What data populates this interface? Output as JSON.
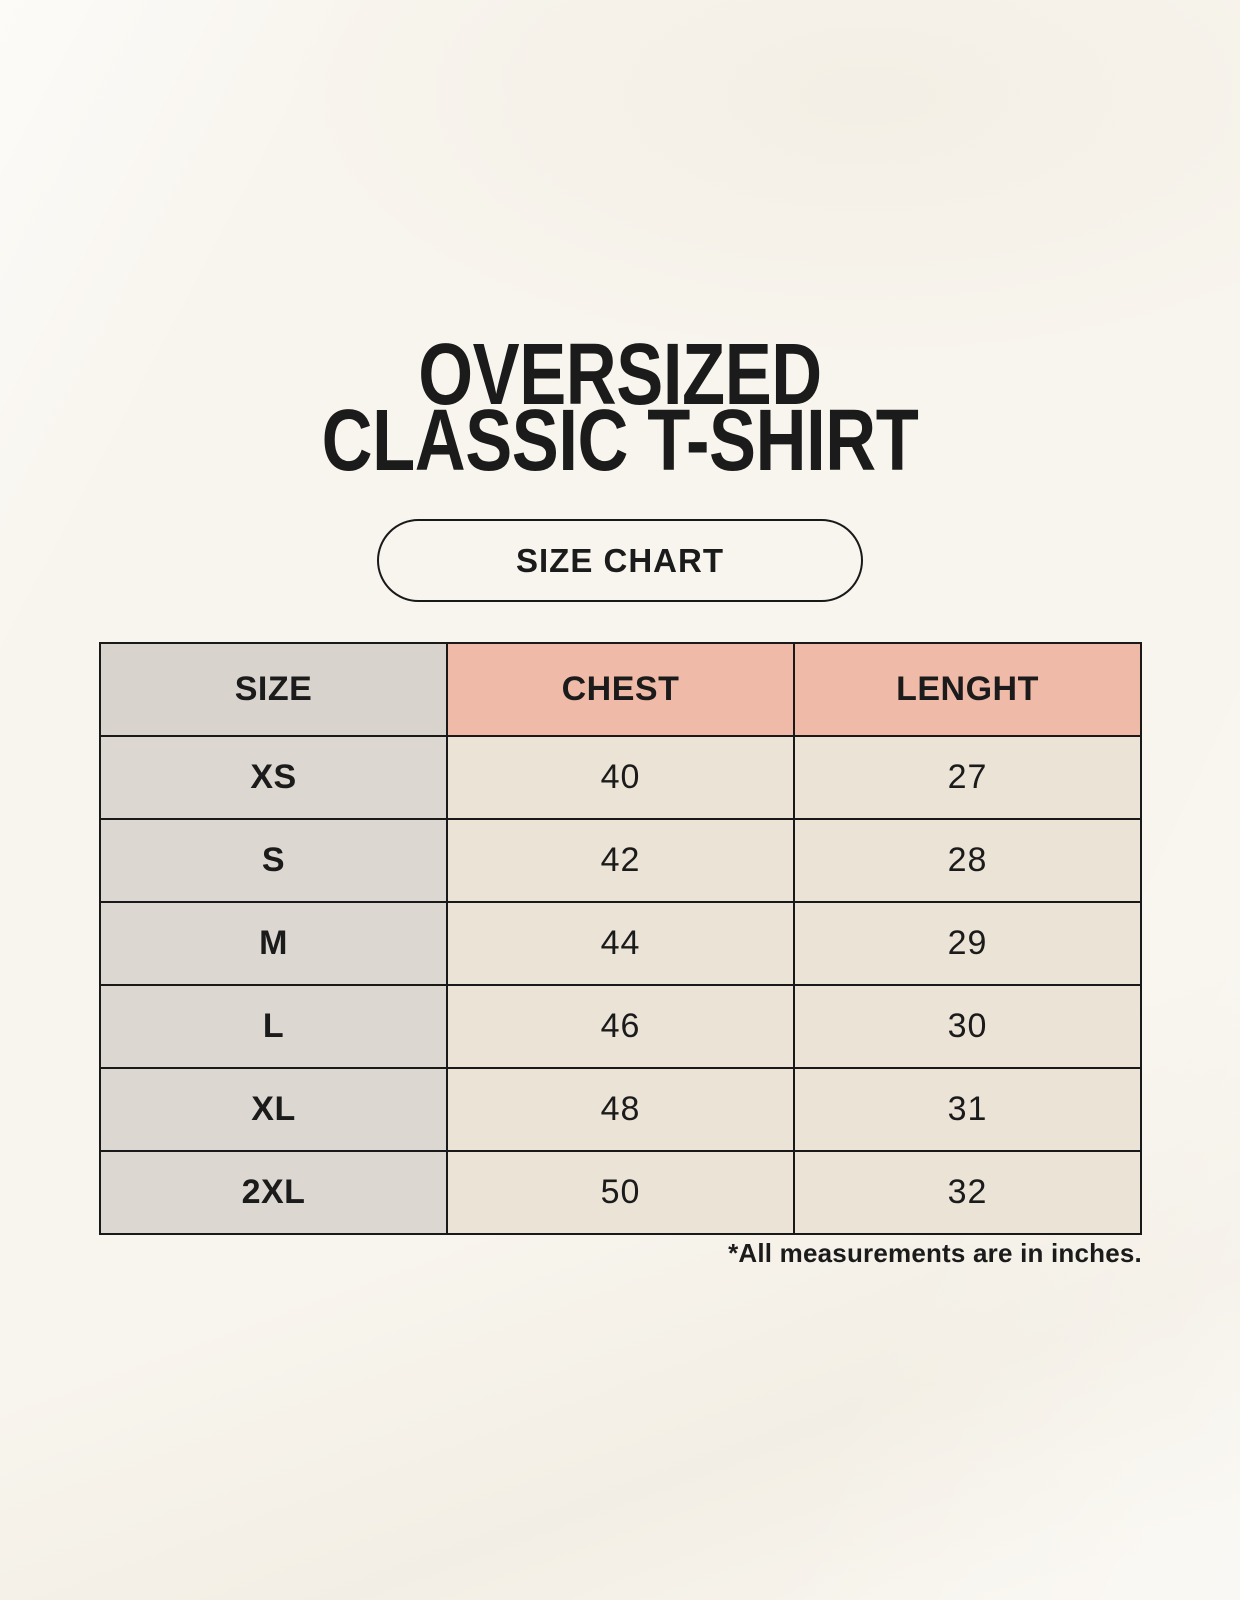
{
  "page": {
    "title": {
      "line1": "OVERSIZED",
      "line2": "CLASSIC T-SHIRT"
    },
    "size_chart_label": "SIZE CHART",
    "footnote": "*All measurements are in inches."
  },
  "chart_data": {
    "type": "table",
    "title": "OVERSIZED CLASSIC T-SHIRT",
    "subtitle": "SIZE CHART",
    "columns": [
      "SIZE",
      "CHEST",
      "LENGHT"
    ],
    "rows": [
      [
        "XS",
        40,
        27
      ],
      [
        "S",
        42,
        28
      ],
      [
        "M",
        44,
        29
      ],
      [
        "L",
        46,
        30
      ],
      [
        "XL",
        48,
        31
      ],
      [
        "2XL",
        50,
        32
      ]
    ],
    "units": "inches",
    "note": "*All measurements are in inches."
  },
  "colors": {
    "background": "#F8F5EE",
    "header_pink": "#F0BAA8",
    "header_gray": "#D9D3CD",
    "size_col_gray": "#DDD7D1",
    "cell_cream": "#EAE3D6",
    "border": "#191919",
    "text": "#1B1B1B"
  }
}
